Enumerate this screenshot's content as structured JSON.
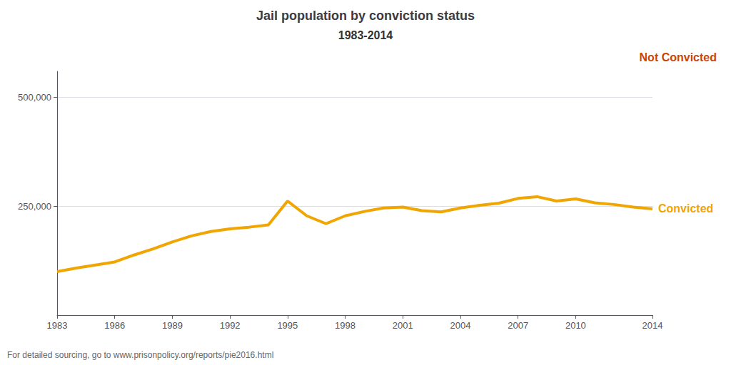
{
  "chart_data": {
    "type": "line",
    "title": "Jail population by conviction status",
    "subtitle": "1983-2014",
    "x": [
      1983,
      1984,
      1985,
      1986,
      1987,
      1988,
      1989,
      1990,
      1991,
      1992,
      1993,
      1994,
      1995,
      1996,
      1997,
      1998,
      1999,
      2000,
      2001,
      2002,
      2003,
      2004,
      2005,
      2006,
      2007,
      2008,
      2009,
      2010,
      2011,
      2012,
      2013,
      2014
    ],
    "series": [
      {
        "name": "Convicted",
        "color": "#f0a500",
        "values": [
          100000,
          108000,
          115000,
          122000,
          138000,
          152000,
          168000,
          182000,
          192000,
          198000,
          202000,
          207000,
          262000,
          228000,
          210000,
          228000,
          238000,
          246000,
          248000,
          240000,
          237000,
          246000,
          252000,
          257000,
          268000,
          272000,
          262000,
          267000,
          258000,
          254000,
          248000,
          244000
        ]
      }
    ],
    "annotations": [
      {
        "text": "Not Convicted",
        "color": "#cc4400"
      },
      {
        "text": "For detailed sourcing, go to www.prisonpolicy.org/reports/pie2016.html"
      }
    ],
    "xlim": [
      1983,
      2014
    ],
    "xticks": [
      1983,
      1986,
      1989,
      1992,
      1995,
      1998,
      2001,
      2004,
      2007,
      2010,
      2014
    ],
    "ylim": [
      0,
      560000
    ],
    "yticks": [
      {
        "value": 250000,
        "label": "250,000"
      },
      {
        "value": 500000,
        "label": "500,000"
      }
    ],
    "grid": true
  }
}
